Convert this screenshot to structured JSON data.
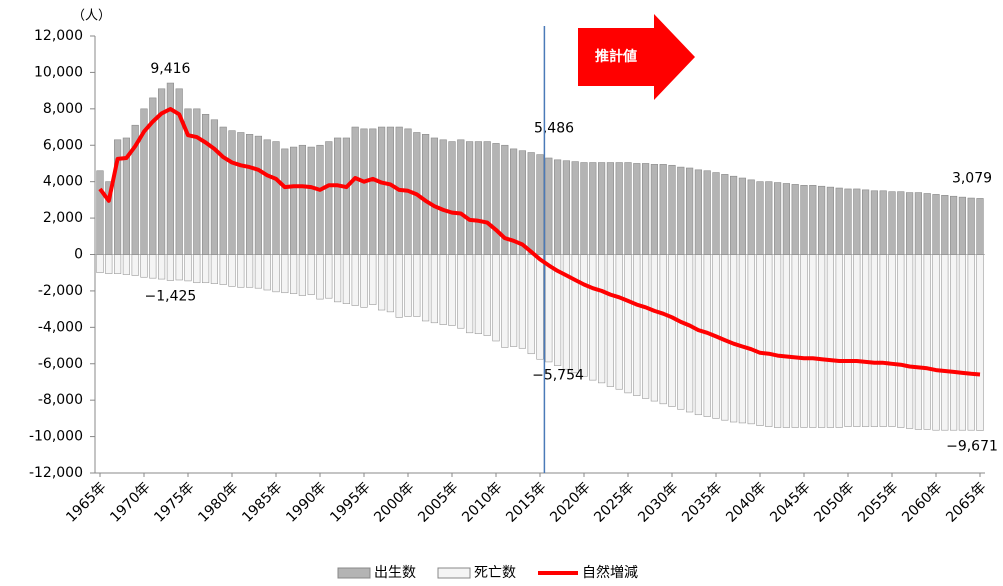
{
  "chart_data": {
    "type": "bar-line",
    "y_unit": "（人）",
    "projection_label": "推計値",
    "categories": [
      "1965年",
      null,
      null,
      null,
      null,
      "1970年",
      null,
      null,
      null,
      null,
      "1975年",
      null,
      null,
      null,
      null,
      "1980年",
      null,
      null,
      null,
      null,
      "1985年",
      null,
      null,
      null,
      null,
      "1990年",
      null,
      null,
      null,
      null,
      "1995年",
      null,
      null,
      null,
      null,
      "2000年",
      null,
      null,
      null,
      null,
      "2005年",
      null,
      null,
      null,
      null,
      "2010年",
      null,
      null,
      null,
      null,
      "2015年",
      null,
      null,
      null,
      null,
      "2020年",
      null,
      null,
      null,
      null,
      "2025年",
      null,
      null,
      null,
      null,
      "2030年",
      null,
      null,
      null,
      null,
      "2035年",
      null,
      null,
      null,
      null,
      "2040年",
      null,
      null,
      null,
      null,
      "2045年",
      null,
      null,
      null,
      null,
      "2050年",
      null,
      null,
      null,
      null,
      "2055年",
      null,
      null,
      null,
      null,
      "2060年",
      null,
      null,
      null,
      null,
      "2065年"
    ],
    "series": [
      {
        "name": "出生数",
        "color": "#b4b4b4",
        "kind": "bar",
        "values": [
          4600,
          4000,
          6300,
          6400,
          7100,
          8000,
          8600,
          9100,
          9416,
          9100,
          8000,
          8000,
          7700,
          7400,
          7000,
          6800,
          6700,
          6600,
          6500,
          6300,
          6200,
          5800,
          5900,
          6000,
          5900,
          6000,
          6200,
          6400,
          6400,
          7000,
          6900,
          6900,
          7000,
          7000,
          7000,
          6900,
          6700,
          6600,
          6400,
          6300,
          6200,
          6300,
          6200,
          6200,
          6200,
          6100,
          6000,
          5800,
          5700,
          5600,
          5486,
          5300,
          5200,
          5150,
          5100,
          5050,
          5050,
          5050,
          5050,
          5050,
          5050,
          5000,
          5000,
          4950,
          4950,
          4900,
          4800,
          4750,
          4650,
          4600,
          4500,
          4400,
          4300,
          4200,
          4100,
          4000,
          4000,
          3950,
          3900,
          3850,
          3800,
          3800,
          3750,
          3700,
          3650,
          3600,
          3600,
          3550,
          3500,
          3500,
          3450,
          3450,
          3400,
          3400,
          3350,
          3300,
          3250,
          3200,
          3150,
          3100,
          3079
        ],
        "value_labels": [
          null,
          null,
          null,
          null,
          null,
          null,
          null,
          null,
          "9,416",
          null,
          null,
          null,
          null,
          null,
          null,
          null,
          null,
          null,
          null,
          null,
          null,
          null,
          null,
          null,
          null,
          null,
          null,
          null,
          null,
          null,
          null,
          null,
          null,
          null,
          null,
          null,
          null,
          null,
          null,
          null,
          null,
          null,
          null,
          null,
          null,
          null,
          null,
          null,
          null,
          null,
          "5,486",
          null,
          null,
          null,
          null,
          null,
          null,
          null,
          null,
          null,
          null,
          null,
          null,
          null,
          null,
          null,
          null,
          null,
          null,
          null,
          null,
          null,
          null,
          null,
          null,
          null,
          null,
          null,
          null,
          null,
          null,
          null,
          null,
          null,
          null,
          null,
          null,
          null,
          null,
          null,
          null,
          null,
          null,
          null,
          null,
          null,
          null,
          null,
          null,
          null,
          "3,079"
        ]
      },
      {
        "name": "死亡数",
        "color": "#f4f4f4",
        "kind": "bar",
        "values": [
          -1000,
          -1050,
          -1050,
          -1100,
          -1150,
          -1250,
          -1300,
          -1350,
          -1425,
          -1400,
          -1450,
          -1550,
          -1550,
          -1600,
          -1650,
          -1750,
          -1800,
          -1800,
          -1850,
          -1950,
          -2050,
          -2100,
          -2150,
          -2250,
          -2200,
          -2450,
          -2400,
          -2600,
          -2700,
          -2800,
          -2900,
          -2750,
          -3050,
          -3150,
          -3450,
          -3400,
          -3400,
          -3650,
          -3750,
          -3850,
          -3900,
          -4050,
          -4300,
          -4350,
          -4450,
          -4750,
          -5100,
          -5050,
          -5150,
          -5450,
          -5754,
          -5900,
          -6100,
          -6300,
          -6500,
          -6700,
          -6900,
          -7050,
          -7250,
          -7400,
          -7600,
          -7750,
          -7900,
          -8050,
          -8200,
          -8350,
          -8500,
          -8650,
          -8800,
          -8900,
          -9000,
          -9100,
          -9200,
          -9250,
          -9300,
          -9400,
          -9450,
          -9500,
          -9500,
          -9500,
          -9500,
          -9500,
          -9500,
          -9500,
          -9500,
          -9450,
          -9450,
          -9450,
          -9450,
          -9450,
          -9450,
          -9500,
          -9550,
          -9600,
          -9600,
          -9650,
          -9650,
          -9650,
          -9650,
          -9650,
          -9671
        ],
        "value_labels": [
          null,
          null,
          null,
          null,
          null,
          null,
          null,
          null,
          "−1,425",
          null,
          null,
          null,
          null,
          null,
          null,
          null,
          null,
          null,
          null,
          null,
          null,
          null,
          null,
          null,
          null,
          null,
          null,
          null,
          null,
          null,
          null,
          null,
          null,
          null,
          null,
          null,
          null,
          null,
          null,
          null,
          null,
          null,
          null,
          null,
          null,
          null,
          null,
          null,
          null,
          null,
          "−5,754",
          null,
          null,
          null,
          null,
          null,
          null,
          null,
          null,
          null,
          null,
          null,
          null,
          null,
          null,
          null,
          null,
          null,
          null,
          null,
          null,
          null,
          null,
          null,
          null,
          null,
          null,
          null,
          null,
          null,
          null,
          null,
          null,
          null,
          null,
          null,
          null,
          null,
          null,
          null,
          null,
          null,
          null,
          null,
          null,
          null,
          null,
          null,
          null,
          null,
          "−9,671"
        ]
      },
      {
        "name": "自然増減",
        "color": "#ff0000",
        "kind": "line",
        "values": [
          3600,
          2950,
          5250,
          5300,
          5950,
          6750,
          7300,
          7750,
          7991,
          7700,
          6550,
          6450,
          6150,
          5800,
          5350,
          5050,
          4900,
          4800,
          4650,
          4350,
          4150,
          3700,
          3750,
          3750,
          3700,
          3550,
          3800,
          3800,
          3700,
          4200,
          4000,
          4150,
          3950,
          3850,
          3550,
          3500,
          3300,
          2950,
          2650,
          2450,
          2300,
          2250,
          1900,
          1850,
          1750,
          1350,
          900,
          750,
          550,
          150,
          -268,
          -600,
          -900,
          -1150,
          -1400,
          -1650,
          -1850,
          -2000,
          -2200,
          -2350,
          -2550,
          -2750,
          -2900,
          -3100,
          -3250,
          -3450,
          -3700,
          -3900,
          -4150,
          -4300,
          -4500,
          -4700,
          -4900,
          -5050,
          -5200,
          -5400,
          -5450,
          -5550,
          -5600,
          -5650,
          -5700,
          -5700,
          -5750,
          -5800,
          -5850,
          -5850,
          -5850,
          -5900,
          -5950,
          -5950,
          -6000,
          -6050,
          -6150,
          -6200,
          -6250,
          -6350,
          -6400,
          -6450,
          -6500,
          -6550,
          -6592
        ]
      }
    ],
    "ylim": [
      -12000,
      12000
    ],
    "yticks": [
      {
        "value": -12000,
        "label": "-12,000"
      },
      {
        "value": -10000,
        "label": "-10,000"
      },
      {
        "value": -8000,
        "label": "-8,000"
      },
      {
        "value": -6000,
        "label": "-6,000"
      },
      {
        "value": -4000,
        "label": "-4,000"
      },
      {
        "value": -2000,
        "label": "-2,000"
      },
      0,
      {
        "value": 2000,
        "label": "2,000"
      },
      {
        "value": 4000,
        "label": "4,000"
      },
      {
        "value": 6000,
        "label": "6,000"
      },
      {
        "value": 8000,
        "label": "8,000"
      },
      {
        "value": 10000,
        "label": "10,000"
      },
      {
        "value": 12000,
        "label": "12,000"
      }
    ],
    "grid": false,
    "legend": "bottom"
  }
}
